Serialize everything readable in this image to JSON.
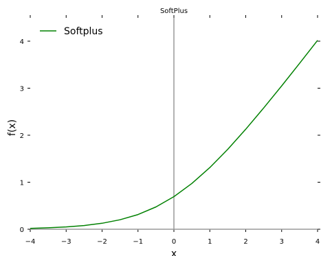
{
  "chart_data": {
    "type": "line",
    "title": "SoftPlus",
    "xlabel": "x",
    "ylabel": "f(x)",
    "xlim": [
      -4,
      4
    ],
    "ylim": [
      0,
      4.2
    ],
    "xticks": [
      -4,
      -3,
      -2,
      -1,
      0,
      1,
      2,
      3,
      4
    ],
    "xtick_labels": [
      "−4",
      "−3",
      "−2",
      "−1",
      "0",
      "1",
      "2",
      "3",
      "4"
    ],
    "yticks": [
      0,
      1,
      2,
      3,
      4
    ],
    "ytick_labels": [
      "0",
      "1",
      "2",
      "3",
      "4"
    ],
    "grid": false,
    "legend": "top-left",
    "series": [
      {
        "name": "Softplus",
        "color": "#008000",
        "x": [
          -4,
          -3.5,
          -3,
          -2.5,
          -2,
          -1.5,
          -1,
          -0.5,
          0,
          0.5,
          1,
          1.5,
          2,
          2.5,
          3,
          3.5,
          4
        ],
        "y": [
          0.018,
          0.03,
          0.049,
          0.079,
          0.127,
          0.201,
          0.313,
          0.474,
          0.693,
          0.974,
          1.313,
          1.701,
          2.127,
          2.579,
          3.049,
          3.53,
          4.018
        ]
      }
    ],
    "reference_lines": {
      "vertical_x": 0,
      "horizontal_y": 0,
      "color": "#999999"
    }
  }
}
